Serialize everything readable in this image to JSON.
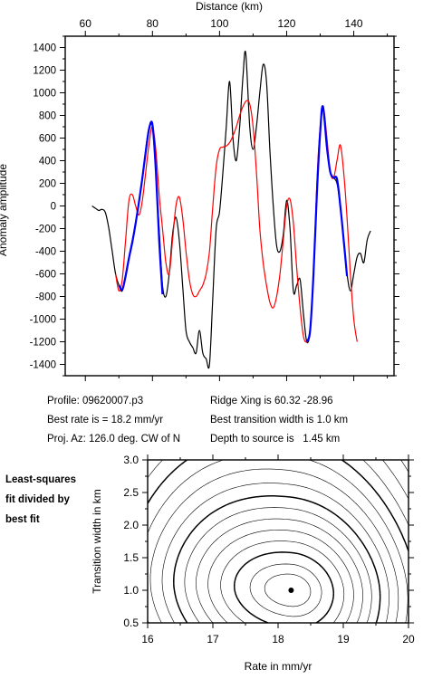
{
  "info": {
    "profile": "Profile: 09620007.p3",
    "best_rate": "Best rate is = 18.2 mm/yr",
    "proj_az": "Proj. Az: 126.0 deg. CW of N",
    "ridge_xing": "Ridge Xing is 60.32 -28.96",
    "best_transition": "Best transition width is 1.0 km",
    "depth_to_source": "Depth to source is   1.45 km"
  },
  "note": {
    "line1": "Least-squares",
    "line2": "fit divided by",
    "line3": "best fit"
  },
  "chart_data": [
    {
      "type": "line",
      "xlabel": "Distance (km)",
      "ylabel": "Anomaly amplitude",
      "xlim": [
        54,
        152
      ],
      "ylim": [
        -1500,
        1500
      ],
      "xticks": [
        60,
        80,
        100,
        120,
        140
      ],
      "yticks": [
        1400,
        1200,
        1000,
        800,
        600,
        400,
        200,
        0,
        -200,
        -400,
        -600,
        -800,
        -1000,
        -1200,
        -1400
      ],
      "x_axis_position": "top",
      "grid": false,
      "colors": {
        "observed": "#000000",
        "model": "#ff0000",
        "fit_window": "#0000ff"
      },
      "series": [
        {
          "role": "observed",
          "x": [
            62,
            63,
            64,
            65,
            66,
            67,
            68,
            69,
            70,
            71,
            72,
            73,
            74,
            75,
            76,
            77,
            78,
            79,
            80,
            81,
            82,
            83,
            84,
            85,
            86,
            87,
            88,
            89,
            90,
            91,
            92,
            93,
            94,
            95,
            96,
            97,
            98,
            99,
            100,
            101,
            102,
            103,
            104,
            105,
            106,
            107,
            107.8,
            109,
            110,
            111,
            112,
            113,
            114,
            115,
            116,
            117,
            118,
            119,
            120,
            121,
            122,
            123,
            124,
            125,
            126,
            127,
            128,
            129,
            130,
            130.8,
            132,
            133,
            134,
            135,
            136,
            137,
            138,
            139,
            140,
            141,
            142,
            143,
            144,
            145
          ],
          "y": [
            0,
            -20,
            -40,
            -30,
            -60,
            -200,
            -400,
            -600,
            -700,
            -750,
            -600,
            -450,
            -300,
            -150,
            50,
            250,
            500,
            700,
            700,
            300,
            -200,
            -700,
            -800,
            -600,
            -250,
            -100,
            -300,
            -700,
            -1100,
            -1200,
            -1250,
            -1300,
            -1100,
            -1300,
            -1350,
            -1400,
            -800,
            -200,
            -50,
            300,
            700,
            1100,
            600,
            400,
            700,
            1150,
            1350,
            700,
            500,
            700,
            1000,
            1250,
            1100,
            500,
            0,
            -350,
            -400,
            -250,
            50,
            -200,
            -750,
            -700,
            -650,
            -950,
            -1200,
            -1100,
            -600,
            100,
            650,
            880,
            500,
            300,
            250,
            200,
            0,
            -300,
            -600,
            -750,
            -600,
            -450,
            -420,
            -500,
            -300,
            -220
          ]
        },
        {
          "role": "model",
          "x": [
            69,
            70,
            71,
            72,
            73,
            74,
            75,
            76,
            77,
            78,
            79,
            80,
            81,
            82,
            83,
            84,
            85,
            86,
            87,
            88,
            89,
            90,
            91,
            92,
            93,
            94,
            95,
            96,
            97,
            98,
            99,
            100,
            101,
            102,
            103,
            104,
            105,
            106,
            107,
            108,
            109,
            110,
            111,
            112,
            113,
            114,
            115,
            116,
            117,
            118,
            119,
            120,
            121,
            122,
            123,
            124,
            125,
            126,
            127,
            128,
            129,
            130,
            131,
            132,
            133,
            134,
            135,
            136,
            137,
            138,
            139,
            140,
            141
          ],
          "y": [
            -600,
            -750,
            -650,
            -300,
            50,
            100,
            0,
            -80,
            50,
            300,
            550,
            700,
            500,
            100,
            -200,
            -500,
            -600,
            -300,
            0,
            80,
            -100,
            -400,
            -650,
            -780,
            -800,
            -750,
            -700,
            -600,
            -400,
            0,
            350,
            500,
            520,
            530,
            560,
            620,
            700,
            800,
            880,
            930,
            900,
            700,
            300,
            -200,
            -500,
            -700,
            -850,
            -900,
            -800,
            -600,
            -300,
            0,
            60,
            -150,
            -550,
            -900,
            -1150,
            -1200,
            -1100,
            -600,
            200,
            700,
            860,
            600,
            300,
            250,
            400,
            540,
            300,
            -100,
            -600,
            -1000,
            -1200
          ]
        },
        {
          "role": "fit_window",
          "x": [
            70,
            71,
            72,
            73,
            74,
            75,
            76,
            77,
            78,
            79,
            80,
            81,
            82,
            83
          ],
          "y": [
            -700,
            -740,
            -620,
            -460,
            -320,
            -150,
            40,
            250,
            480,
            680,
            720,
            320,
            -300,
            -780
          ]
        },
        {
          "role": "fit_window",
          "x": [
            126,
            127,
            128,
            129,
            130,
            130.8,
            132,
            133,
            134,
            135,
            136,
            137,
            138
          ],
          "y": [
            -1200,
            -1100,
            -600,
            100,
            650,
            880,
            520,
            300,
            250,
            240,
            0,
            -300,
            -620
          ]
        }
      ]
    },
    {
      "type": "contour",
      "xlabel": "Rate in mm/yr",
      "ylabel": "Transition width in km",
      "xlim": [
        16,
        20
      ],
      "ylim": [
        0.5,
        3.0
      ],
      "xticks": [
        16,
        17,
        18,
        19,
        20
      ],
      "yticks": [
        0.5,
        1.0,
        1.5,
        2.0,
        2.5,
        3.0
      ],
      "best_fit": {
        "rate": 18.2,
        "width": 1.0
      },
      "contour_levels": [
        1.02,
        1.05,
        1.1,
        1.16,
        1.23,
        1.31,
        1.4,
        1.5,
        1.62,
        1.76,
        1.92,
        2.1,
        2.3,
        2.55,
        2.85,
        3.2,
        3.6,
        4.1,
        4.7,
        5.4
      ],
      "bold_levels": [
        1.1,
        1.5,
        2.1,
        3.2
      ],
      "colors": {
        "contour": "#000000",
        "marker": "#000000"
      }
    }
  ]
}
